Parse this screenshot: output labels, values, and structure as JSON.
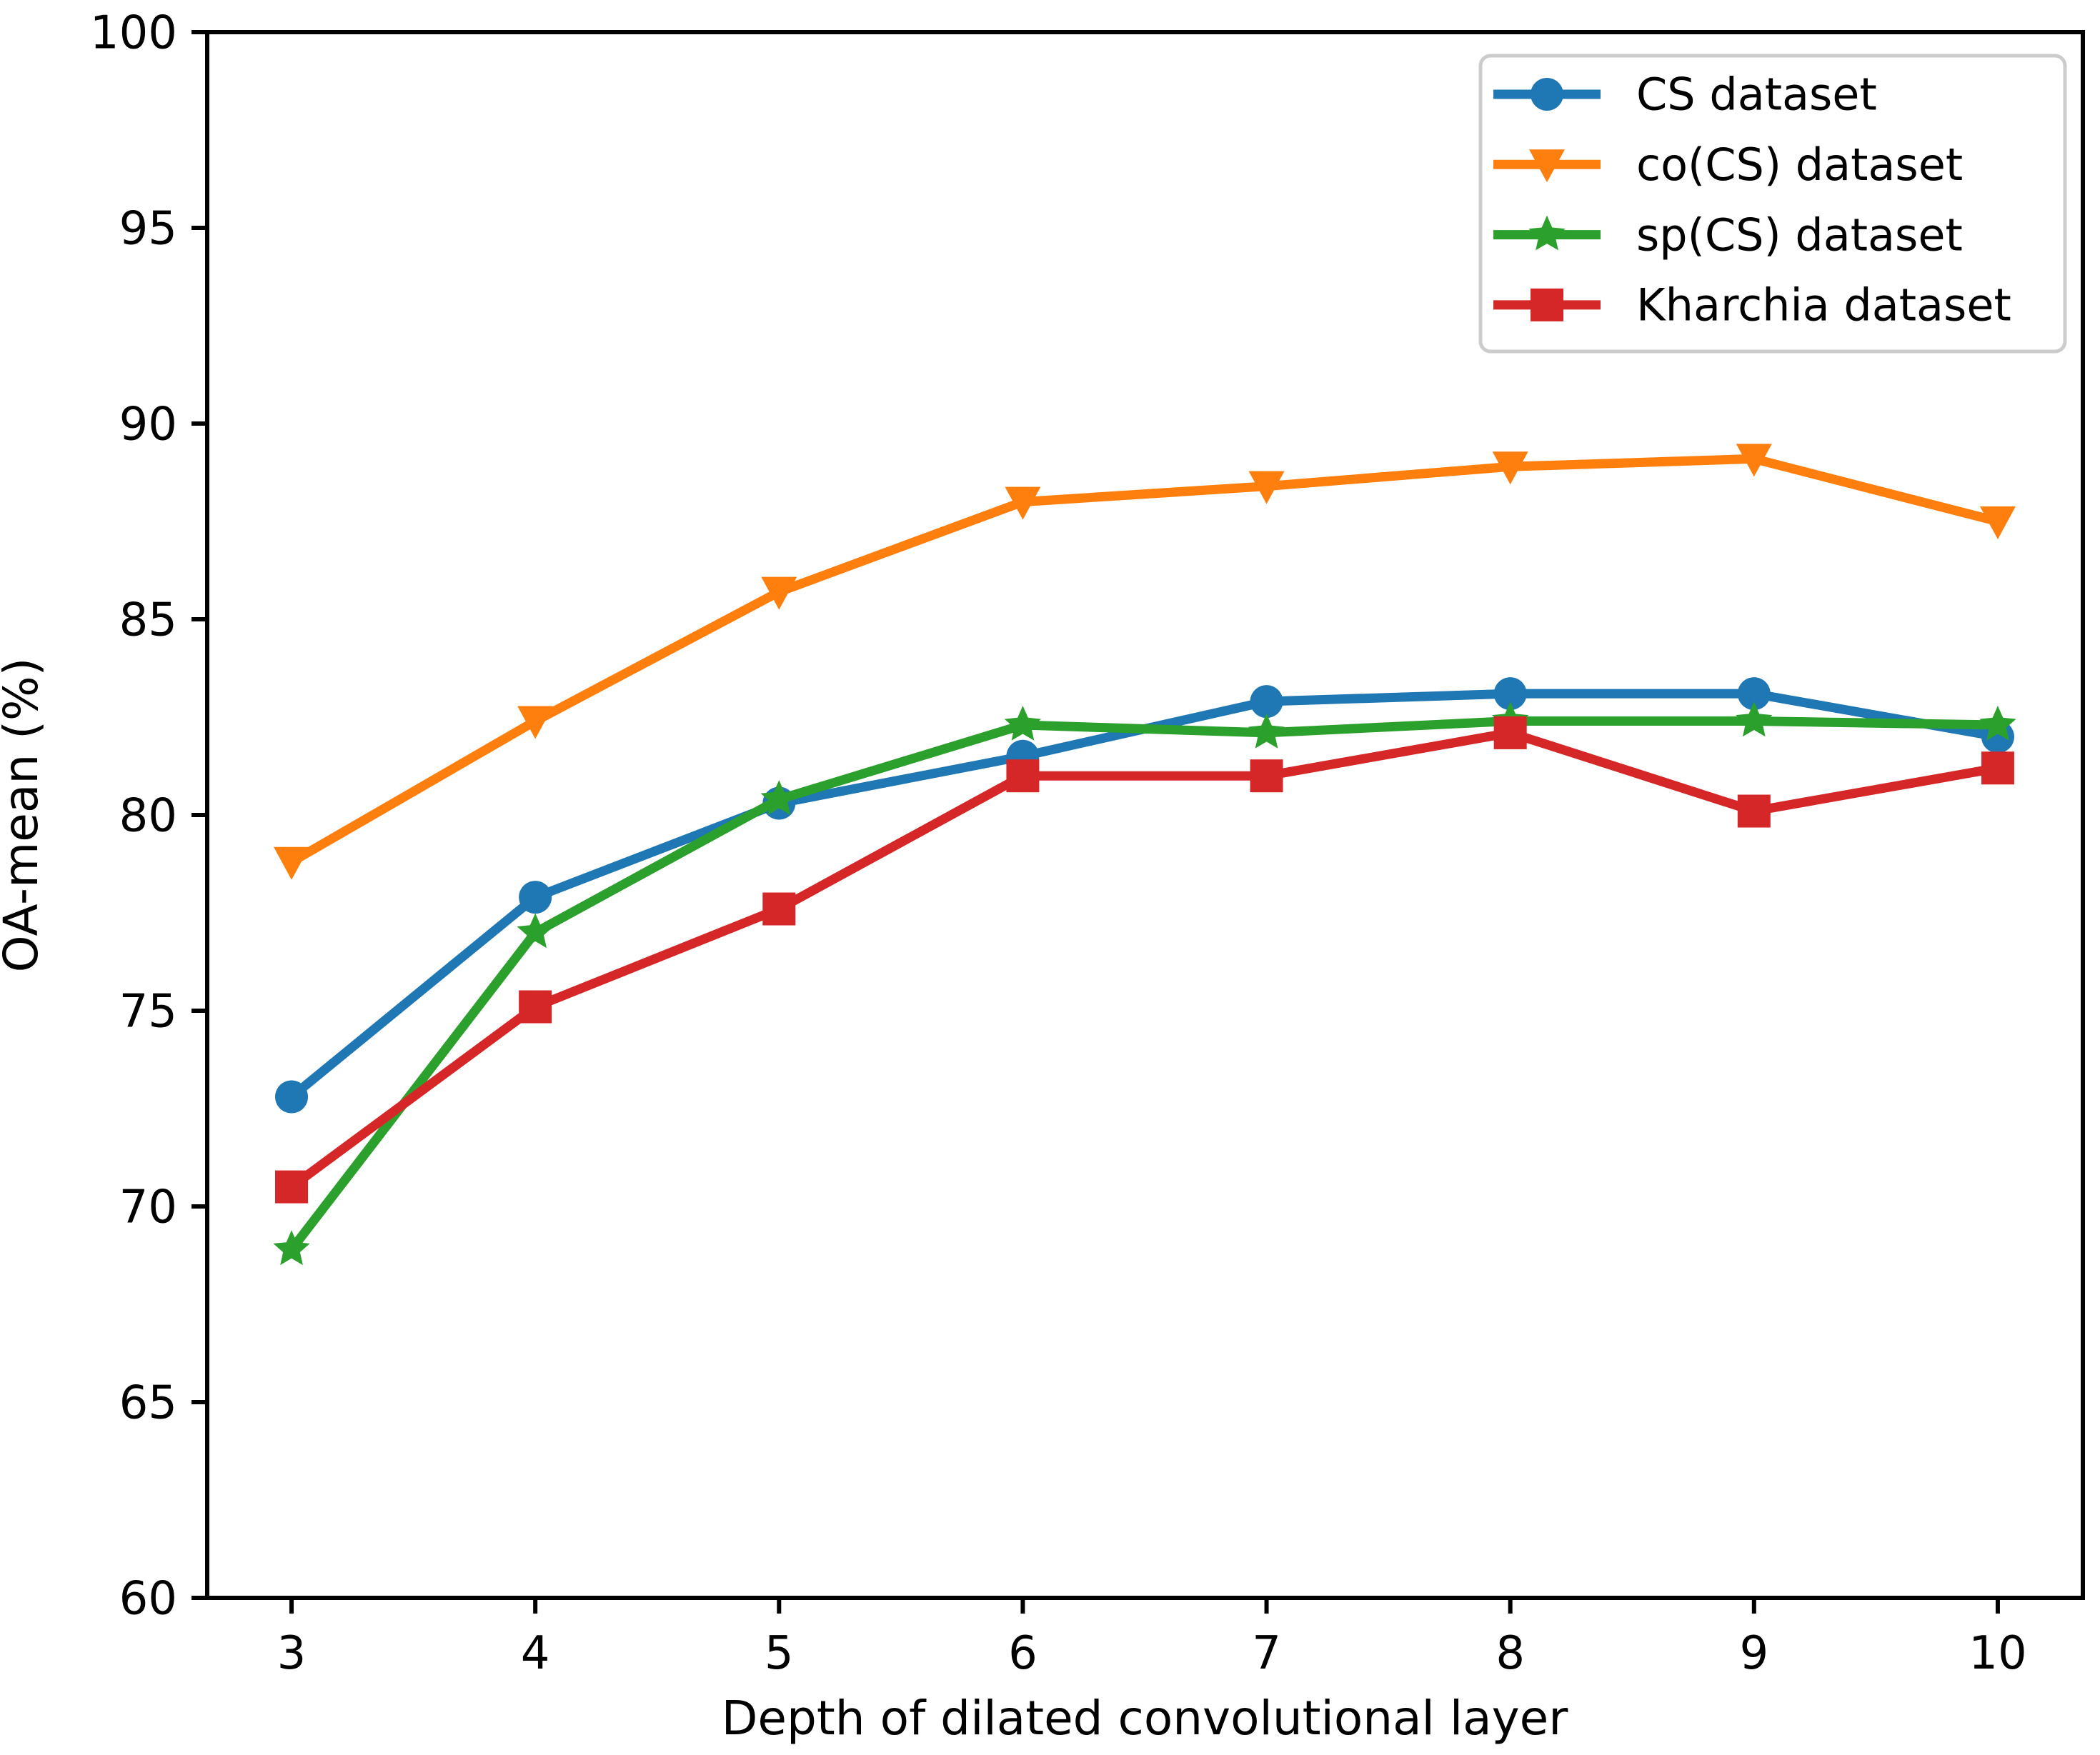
{
  "chart_data": {
    "type": "line",
    "title": "",
    "xlabel": "Depth of dilated convolutional layer",
    "ylabel": "OA-mean (%)",
    "x": [
      3,
      4,
      5,
      6,
      7,
      8,
      9,
      10
    ],
    "xticks": [
      3,
      4,
      5,
      6,
      7,
      8,
      9,
      10
    ],
    "yticks": [
      60,
      65,
      70,
      75,
      80,
      85,
      90,
      95,
      100
    ],
    "xlim": [
      2.654,
      10.349
    ],
    "ylim": [
      60,
      100
    ],
    "grid": false,
    "legend_position": "upper right",
    "background_color": "#ffffff",
    "axis_color": "#000000",
    "legend_border_color": "#cccccc",
    "series": [
      {
        "name": "CS dataset",
        "color": "#1f77b4",
        "marker": "circle",
        "values": [
          72.8,
          77.9,
          80.3,
          81.5,
          82.9,
          83.1,
          83.1,
          82.0
        ]
      },
      {
        "name": "co(CS) dataset",
        "color": "#ff7f0e",
        "marker": "triangle-down",
        "values": [
          78.8,
          82.4,
          85.7,
          88.0,
          88.4,
          88.9,
          89.1,
          87.5
        ]
      },
      {
        "name": "sp(CS) dataset",
        "color": "#2ca02c",
        "marker": "star",
        "values": [
          68.9,
          77.0,
          80.4,
          82.3,
          82.1,
          82.4,
          82.4,
          82.3
        ]
      },
      {
        "name": "Kharchia dataset",
        "color": "#d62728",
        "marker": "square",
        "values": [
          70.5,
          75.1,
          77.6,
          81.0,
          81.0,
          82.1,
          80.1,
          81.2
        ]
      }
    ]
  }
}
